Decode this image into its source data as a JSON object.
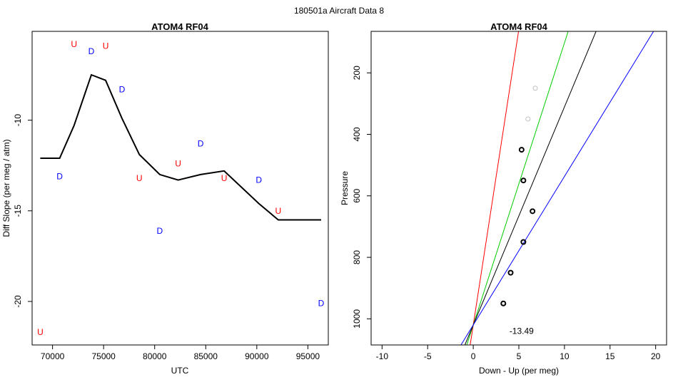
{
  "figure": {
    "suptitle": "180501a   Aircraft Data 8"
  },
  "colors": {
    "red": "#ff0000",
    "blue": "#0000ff",
    "green": "#00cc00",
    "black": "#000000",
    "gray": "#bebebe"
  },
  "chart_data": [
    {
      "id": "left",
      "type": "line",
      "title": "ATOM4 RF04",
      "xlabel": "UTC",
      "ylabel": "Diff Slope (per meg / atm)",
      "xlim": [
        68000,
        97000
      ],
      "ylim": [
        -22.4,
        -5.1
      ],
      "xticks": [
        70000,
        75000,
        80000,
        85000,
        90000,
        95000
      ],
      "xtick_labels": [
        "70000",
        "75000",
        "80000",
        "85000",
        "90000",
        "95000"
      ],
      "yticks": [
        -10,
        -15,
        -20
      ],
      "ytick_labels": [
        "-10",
        "-15",
        "-20"
      ],
      "line": {
        "x": [
          68800,
          70700,
          72100,
          73800,
          75200,
          76800,
          78500,
          80500,
          82300,
          84500,
          86800,
          90200,
          92100,
          96300
        ],
        "y": [
          -12.1,
          -12.1,
          -10.3,
          -7.5,
          -7.8,
          -9.9,
          -11.9,
          -13.0,
          -13.3,
          -13.0,
          -12.8,
          -14.6,
          -15.5,
          -15.5
        ]
      },
      "labels": [
        {
          "x": 68800,
          "y": -21.7,
          "text": "U",
          "color": "red"
        },
        {
          "x": 70700,
          "y": -13.1,
          "text": "D",
          "color": "blue"
        },
        {
          "x": 72100,
          "y": -5.8,
          "text": "U",
          "color": "red"
        },
        {
          "x": 73800,
          "y": -6.2,
          "text": "D",
          "color": "blue"
        },
        {
          "x": 75200,
          "y": -5.9,
          "text": "U",
          "color": "red"
        },
        {
          "x": 76800,
          "y": -8.3,
          "text": "D",
          "color": "blue"
        },
        {
          "x": 78500,
          "y": -13.2,
          "text": "U",
          "color": "red"
        },
        {
          "x": 80500,
          "y": -16.1,
          "text": "D",
          "color": "blue"
        },
        {
          "x": 82300,
          "y": -12.4,
          "text": "U",
          "color": "red"
        },
        {
          "x": 84500,
          "y": -11.3,
          "text": "D",
          "color": "blue"
        },
        {
          "x": 86800,
          "y": -13.2,
          "text": "U",
          "color": "red"
        },
        {
          "x": 90200,
          "y": -13.3,
          "text": "D",
          "color": "blue"
        },
        {
          "x": 92100,
          "y": -15.0,
          "text": "U",
          "color": "red"
        },
        {
          "x": 96300,
          "y": -20.1,
          "text": "D",
          "color": "blue"
        }
      ]
    },
    {
      "id": "right",
      "type": "scatter",
      "title": "ATOM4 RF04",
      "xlabel": "Down - Up (per meg)",
      "ylabel": "Pressure",
      "xlim": [
        -11.2,
        21.2
      ],
      "ylim": [
        1085,
        65
      ],
      "xticks": [
        -10,
        -5,
        0,
        5,
        10,
        15,
        20
      ],
      "xtick_labels": [
        "-10",
        "-5",
        "0",
        "5",
        "10",
        "15",
        "20"
      ],
      "yticks": [
        200,
        400,
        600,
        800,
        1000
      ],
      "ytick_labels": [
        "200",
        "400",
        "600",
        "800",
        "1000"
      ],
      "points": [
        {
          "x": 6.8,
          "y": 250,
          "color": "gray"
        },
        {
          "x": 6.0,
          "y": 350,
          "color": "gray"
        },
        {
          "x": 5.3,
          "y": 450,
          "color": "black"
        },
        {
          "x": 5.5,
          "y": 550,
          "color": "black"
        },
        {
          "x": 6.5,
          "y": 650,
          "color": "black"
        },
        {
          "x": 5.5,
          "y": 750,
          "color": "black"
        },
        {
          "x": 4.1,
          "y": 850,
          "color": "black"
        },
        {
          "x": 3.3,
          "y": 950,
          "color": "black"
        }
      ],
      "lines": [
        {
          "name": "red",
          "color": "red",
          "x0": 0,
          "y0": 1020,
          "slope_per_100hPa": 0.52
        },
        {
          "name": "green",
          "color": "green",
          "x0": 0,
          "y0": 1020,
          "slope_per_100hPa": 1.09
        },
        {
          "name": "black",
          "color": "black",
          "x0": 0,
          "y0": 1020,
          "slope_per_100hPa": 1.41
        },
        {
          "name": "blue",
          "color": "blue",
          "x0": 0,
          "y0": 1020,
          "slope_per_100hPa": 2.07
        }
      ],
      "annotation": {
        "x": 5.3,
        "y": 1040,
        "text": "-13.49"
      }
    }
  ]
}
